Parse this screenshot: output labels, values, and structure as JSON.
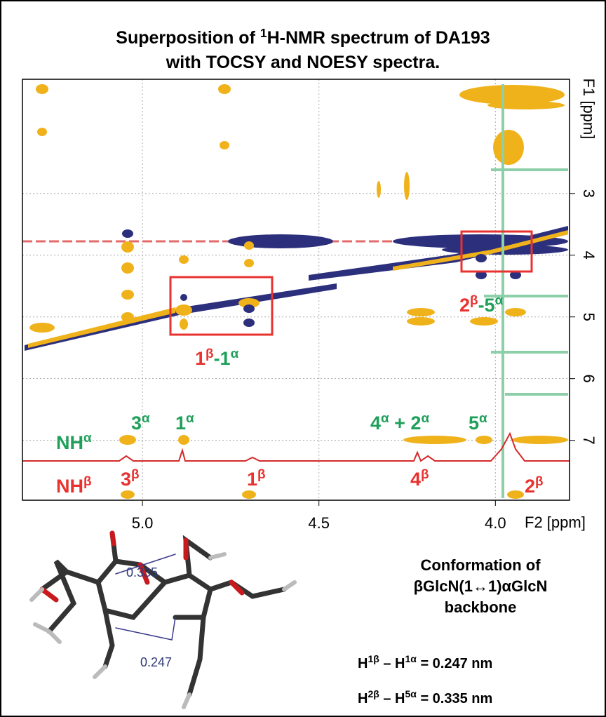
{
  "chart_data": {
    "type": "contour",
    "title": {
      "line1": [
        {
          "text": "Superposition of "
        },
        {
          "sup": "1"
        },
        {
          "text": "H-NMR spectrum of DA193"
        }
      ],
      "line2": "with TOCSY and NOESY spectra."
    },
    "x_label": "F2 [ppm]",
    "y_label": "F1 [ppm]",
    "xlim": [
      5.34,
      3.79
    ],
    "ylim": [
      1.15,
      7.97
    ],
    "xticks": [
      {
        "value": 5,
        "label": "5.0"
      },
      {
        "value": 4.5,
        "label": "4.5"
      },
      {
        "value": 4,
        "label": "4.0"
      }
    ],
    "yticks": [
      3,
      4,
      5,
      6,
      7
    ],
    "grid": true,
    "peak_labels": {
      "b1_a1": [
        {
          "base": "1",
          "sup": "β"
        },
        {
          "base": "-1",
          "sup": "α"
        }
      ],
      "b2_a5": [
        {
          "base": "2",
          "sup": "β"
        },
        {
          "base": "-5",
          "sup": "α"
        }
      ],
      "nh_a": {
        "base": "NH",
        "sup": "α"
      },
      "a3": {
        "base": "3",
        "sup": "α"
      },
      "a1": {
        "base": "1",
        "sup": "α"
      },
      "a4_a2": [
        {
          "base": "4",
          "sup": "α"
        },
        {
          "base": " + 2",
          "sup": "α"
        }
      ],
      "a5": {
        "base": "5",
        "sup": "α"
      },
      "nh_b": {
        "base": "NH",
        "sup": "β"
      },
      "b3": {
        "base": "3",
        "sup": "β"
      },
      "b1": {
        "base": "1",
        "sup": "β"
      },
      "b4": {
        "base": "4",
        "sup": "β"
      },
      "b2": {
        "base": "2",
        "sup": "β"
      }
    }
  },
  "structure": {
    "distances": [
      "0.335",
      "0.247"
    ],
    "caption": [
      "Conformation of",
      "βGlcN(1↔1)αGlcN",
      "backbone"
    ],
    "measures": [
      [
        {
          "text": "H"
        },
        {
          "sup": "1β"
        },
        {
          "text": " – H"
        },
        {
          "sup": "1α"
        },
        {
          "text": " = 0.247 nm"
        }
      ],
      [
        {
          "text": "H"
        },
        {
          "sup": "2β"
        },
        {
          "text": " – H"
        },
        {
          "sup": "5α"
        },
        {
          "text": " = 0.335 nm"
        }
      ]
    ]
  }
}
